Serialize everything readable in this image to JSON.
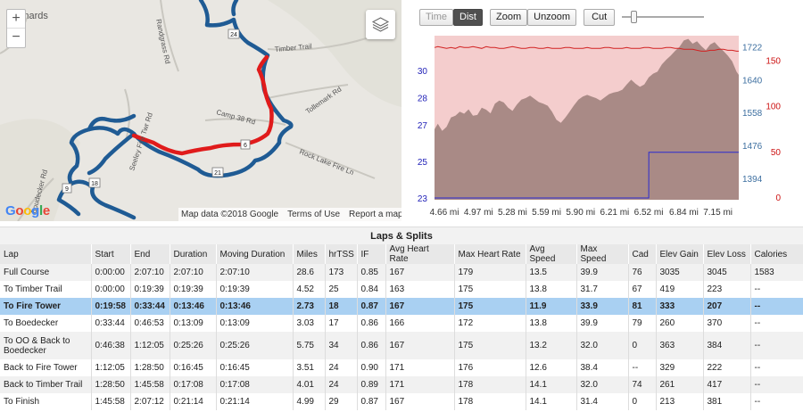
{
  "map": {
    "town_label": "Leonards",
    "zoom_in": "+",
    "zoom_out": "−",
    "road_labels": [
      "Timber Trail",
      "Tollemark Rd",
      "Camp 38 Rd",
      "Rock Lake Fire Ln",
      "Seeley Fire Twr Rd",
      "Randgrass Rd",
      "Boudecker Rd"
    ],
    "route_badges": [
      "24",
      "6",
      "21",
      "18",
      "9"
    ],
    "google": [
      "G",
      "o",
      "o",
      "g",
      "l",
      "e"
    ],
    "footer": {
      "data": "Map data ©2018 Google",
      "terms": "Terms of Use",
      "report": "Report a map error"
    }
  },
  "controls": {
    "time": "Time",
    "dist": "Dist",
    "zoom": "Zoom",
    "unzoom": "Unzoom",
    "cut": "Cut",
    "slider_value": 0.12
  },
  "chart_data": {
    "type": "area",
    "x_ticks": [
      "4.66 mi",
      "4.97 mi",
      "5.28 mi",
      "5.59 mi",
      "5.90 mi",
      "6.21 mi",
      "6.52 mi",
      "6.84 mi",
      "7.15 mi"
    ],
    "xlim": [
      4.57,
      7.34
    ],
    "left_axis": {
      "ticks": [
        "30",
        "28",
        "27",
        "25",
        "23"
      ],
      "tick_values": [
        30.0,
        28.5,
        27.0,
        25.0,
        23.0
      ],
      "ylim": [
        22.9,
        31.9
      ],
      "color": "#2323b8"
    },
    "right_axis_1": {
      "ticks": [
        "1722",
        "1640",
        "1558",
        "1476",
        "1394"
      ],
      "ylim": [
        1340,
        1750
      ],
      "color": "#3d6fa0"
    },
    "right_axis_2": {
      "ticks": [
        "150",
        "100",
        "50",
        "0"
      ],
      "ylim": [
        -3,
        177
      ],
      "color": "#cc1111"
    },
    "colors": {
      "elevation_fill": "#a98a86",
      "background": "#f4cdcd",
      "heart_rate": "#d22222",
      "speed": "#2a2ad0"
    },
    "series": [
      {
        "axis": "right_axis_1",
        "x": [
          4.57,
          4.6,
          4.64,
          4.68,
          4.72,
          4.76,
          4.8,
          4.84,
          4.88,
          4.92,
          4.96,
          5.0,
          5.04,
          5.08,
          5.12,
          5.16,
          5.2,
          5.24,
          5.28,
          5.32,
          5.36,
          5.4,
          5.44,
          5.48,
          5.52,
          5.56,
          5.6,
          5.64,
          5.68,
          5.72,
          5.76,
          5.8,
          5.84,
          5.88,
          5.92,
          5.96,
          6.0,
          6.04,
          6.08,
          6.12,
          6.16,
          6.2,
          6.24,
          6.28,
          6.32,
          6.36,
          6.4,
          6.44,
          6.48,
          6.52,
          6.56,
          6.6,
          6.64,
          6.68,
          6.72,
          6.76,
          6.8,
          6.84,
          6.88,
          6.92,
          6.96,
          7.0,
          7.04,
          7.08,
          7.12,
          7.16,
          7.2,
          7.24,
          7.28,
          7.32,
          7.34
        ],
        "values": [
          1516,
          1530,
          1512,
          1522,
          1546,
          1550,
          1560,
          1555,
          1566,
          1550,
          1552,
          1570,
          1565,
          1556,
          1580,
          1588,
          1583,
          1570,
          1562,
          1578,
          1590,
          1594,
          1600,
          1592,
          1584,
          1580,
          1575,
          1560,
          1540,
          1532,
          1545,
          1560,
          1576,
          1590,
          1598,
          1602,
          1598,
          1594,
          1588,
          1596,
          1604,
          1608,
          1610,
          1615,
          1628,
          1640,
          1630,
          1622,
          1628,
          1646,
          1655,
          1660,
          1678,
          1690,
          1700,
          1712,
          1722,
          1738,
          1742,
          1730,
          1736,
          1724,
          1714,
          1728,
          1734,
          1722,
          1712,
          1700,
          1686,
          1660,
          1652
        ]
      },
      {
        "axis": "right_axis_2",
        "x": [
          4.57,
          4.6,
          4.64,
          4.68,
          4.72,
          4.76,
          4.8,
          4.84,
          4.88,
          4.92,
          4.96,
          5.0,
          5.04,
          5.08,
          5.12,
          5.16,
          5.2,
          5.24,
          5.28,
          5.32,
          5.36,
          5.4,
          5.44,
          5.48,
          5.52,
          5.56,
          5.6,
          5.64,
          5.68,
          5.72,
          5.76,
          5.8,
          5.84,
          5.88,
          5.92,
          5.96,
          6.0,
          6.04,
          6.08,
          6.12,
          6.16,
          6.2,
          6.24,
          6.28,
          6.32,
          6.36,
          6.4,
          6.44,
          6.48,
          6.52,
          6.56,
          6.6,
          6.64,
          6.68,
          6.72,
          6.76,
          6.8,
          6.84,
          6.88,
          6.92,
          6.96,
          7.0,
          7.04,
          7.08,
          7.12,
          7.16,
          7.2,
          7.24,
          7.28,
          7.32,
          7.34
        ],
        "values": [
          164,
          165,
          164,
          163,
          164,
          163,
          165,
          164,
          164,
          165,
          164,
          163,
          165,
          164,
          164,
          163,
          163,
          164,
          165,
          164,
          163,
          163,
          164,
          164,
          163,
          163,
          164,
          163,
          163,
          163,
          164,
          164,
          163,
          163,
          163,
          164,
          163,
          163,
          163,
          164,
          164,
          163,
          163,
          163,
          164,
          163,
          163,
          163,
          164,
          164,
          163,
          163,
          163,
          164,
          164,
          163,
          163,
          162,
          162,
          162,
          161,
          160,
          160,
          161,
          161,
          162,
          162,
          161,
          161,
          160,
          160
        ]
      },
      {
        "axis": "left_axis",
        "x": [
          4.57,
          6.52,
          6.521,
          7.34
        ],
        "values": [
          23.0,
          23.0,
          25.5,
          25.5
        ]
      }
    ]
  },
  "laps": {
    "title": "Laps & Splits",
    "columns": [
      "Lap",
      "Start",
      "End",
      "Duration",
      "Moving Duration",
      "Miles",
      "hrTSS",
      "IF",
      "Avg Heart Rate",
      "Max Heart Rate",
      "Avg Speed",
      "Max Speed",
      "Cad",
      "Elev Gain",
      "Elev Loss",
      "Calories"
    ],
    "rows": [
      [
        "Full Course",
        "0:00:00",
        "2:07:10",
        "2:07:10",
        "2:07:10",
        "28.6",
        "173",
        "0.85",
        "167",
        "179",
        "13.5",
        "39.9",
        "76",
        "3035",
        "3045",
        "1583"
      ],
      [
        "To Timber Trail",
        "0:00:00",
        "0:19:39",
        "0:19:39",
        "0:19:39",
        "4.52",
        "25",
        "0.84",
        "163",
        "175",
        "13.8",
        "31.7",
        "67",
        "419",
        "223",
        "--"
      ],
      [
        "To Fire Tower",
        "0:19:58",
        "0:33:44",
        "0:13:46",
        "0:13:46",
        "2.73",
        "18",
        "0.87",
        "167",
        "175",
        "11.9",
        "33.9",
        "81",
        "333",
        "207",
        "--"
      ],
      [
        "To Boedecker",
        "0:33:44",
        "0:46:53",
        "0:13:09",
        "0:13:09",
        "3.03",
        "17",
        "0.86",
        "166",
        "172",
        "13.8",
        "39.9",
        "79",
        "260",
        "370",
        "--"
      ],
      [
        "To OO & Back to Boedecker",
        "0:46:38",
        "1:12:05",
        "0:25:26",
        "0:25:26",
        "5.75",
        "34",
        "0.86",
        "167",
        "175",
        "13.2",
        "32.0",
        "0",
        "363",
        "384",
        "--"
      ],
      [
        "Back to Fire Tower",
        "1:12:05",
        "1:28:50",
        "0:16:45",
        "0:16:45",
        "3.51",
        "24",
        "0.90",
        "171",
        "176",
        "12.6",
        "38.4",
        "--",
        "329",
        "222",
        "--"
      ],
      [
        "Back to Timber Trail",
        "1:28:50",
        "1:45:58",
        "0:17:08",
        "0:17:08",
        "4.01",
        "24",
        "0.89",
        "171",
        "178",
        "14.1",
        "32.0",
        "74",
        "261",
        "417",
        "--"
      ],
      [
        "To Finish",
        "1:45:58",
        "2:07:12",
        "0:21:14",
        "0:21:14",
        "4.99",
        "29",
        "0.87",
        "167",
        "178",
        "14.1",
        "31.4",
        "0",
        "213",
        "381",
        "--"
      ]
    ],
    "selected_row": 2
  }
}
